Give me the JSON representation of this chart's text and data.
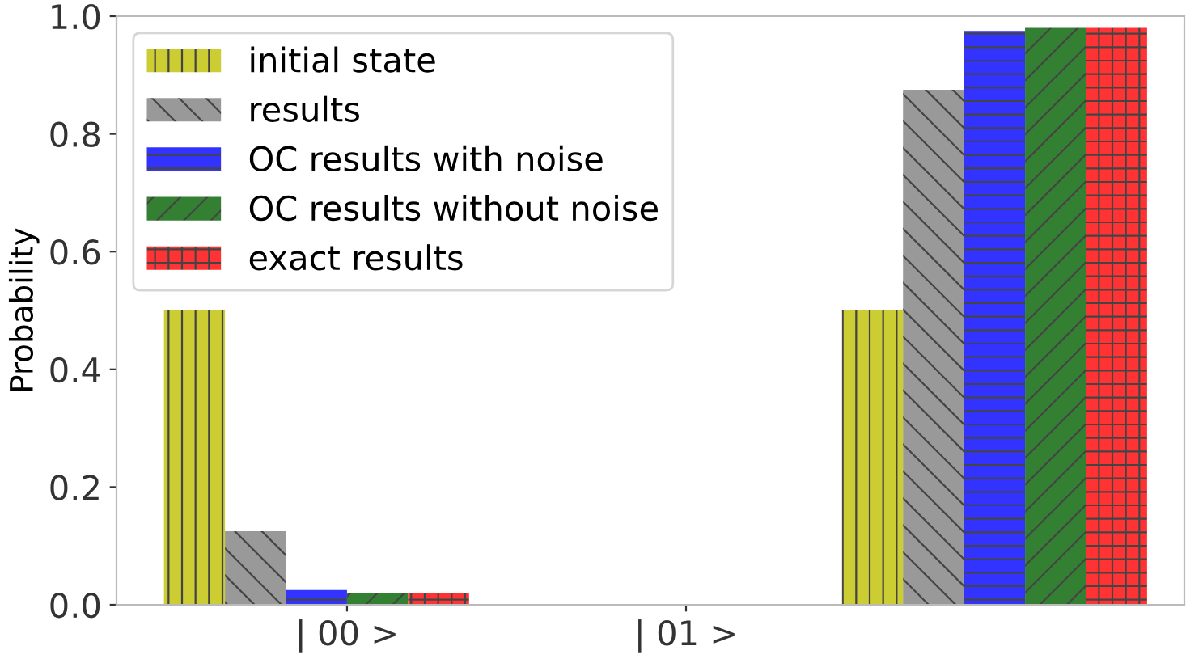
{
  "chart_data": {
    "type": "bar",
    "ylabel": "Probability",
    "categories": [
      "| 00 >",
      "| 01 >",
      null
    ],
    "series": [
      {
        "name": "initial state",
        "color": "#cccc33",
        "values": [
          0.5,
          0,
          0.5
        ]
      },
      {
        "name": "results",
        "color": "#999999",
        "values": [
          0.125,
          0,
          0.875
        ]
      },
      {
        "name": "OC results with noise",
        "color": "#3333ff",
        "values": [
          0.025,
          0,
          0.975
        ]
      },
      {
        "name": "OC results without noise",
        "color": "#338033",
        "values": [
          0.02,
          0,
          0.98
        ]
      },
      {
        "name": "exact results",
        "color": "#ff3333",
        "values": [
          0.02,
          0,
          0.98
        ]
      }
    ],
    "ylim": [
      0,
      1.0
    ],
    "yticks": [
      {
        "value": 0,
        "label": "0.0"
      },
      0.2,
      0.4,
      0.6,
      0.8,
      {
        "value": 1,
        "label": "1.0"
      }
    ],
    "grid": false,
    "legend": "top left"
  }
}
